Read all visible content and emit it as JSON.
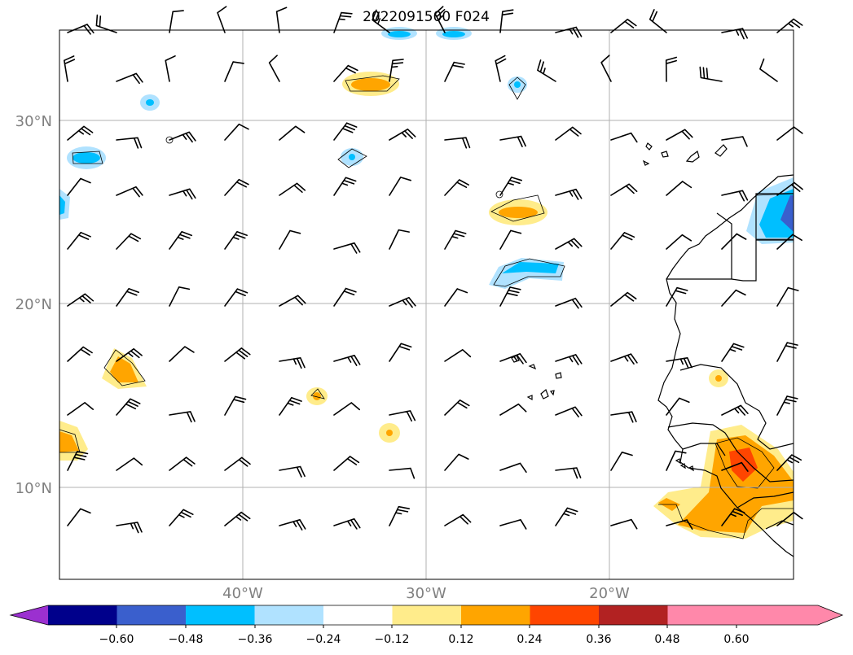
{
  "title": "2022091500 F024",
  "lat_labels": [
    "30°N",
    "20°N",
    "10°N"
  ],
  "lon_labels": [
    "40°W",
    "30°W",
    "20°W"
  ],
  "colorbar": {
    "ticks": [
      "−0.60",
      "−0.48",
      "−0.36",
      "−0.24",
      "−0.12",
      "0.12",
      "0.24",
      "0.36",
      "0.48",
      "0.60"
    ],
    "colors": [
      "#9b30d0",
      "#00008b",
      "#3a5fcd",
      "#00bfff",
      "#b0e2ff",
      "#ffffff",
      "#ffec8b",
      "#ffa500",
      "#ff4500",
      "#b22222",
      "#ff88aa"
    ]
  },
  "field_colors": {
    "pos1": "#ffec8b",
    "pos2": "#ffa500",
    "pos3": "#ff4500",
    "neg1": "#b0e2ff",
    "neg2": "#00bfff",
    "neg3": "#3a5fcd"
  }
}
